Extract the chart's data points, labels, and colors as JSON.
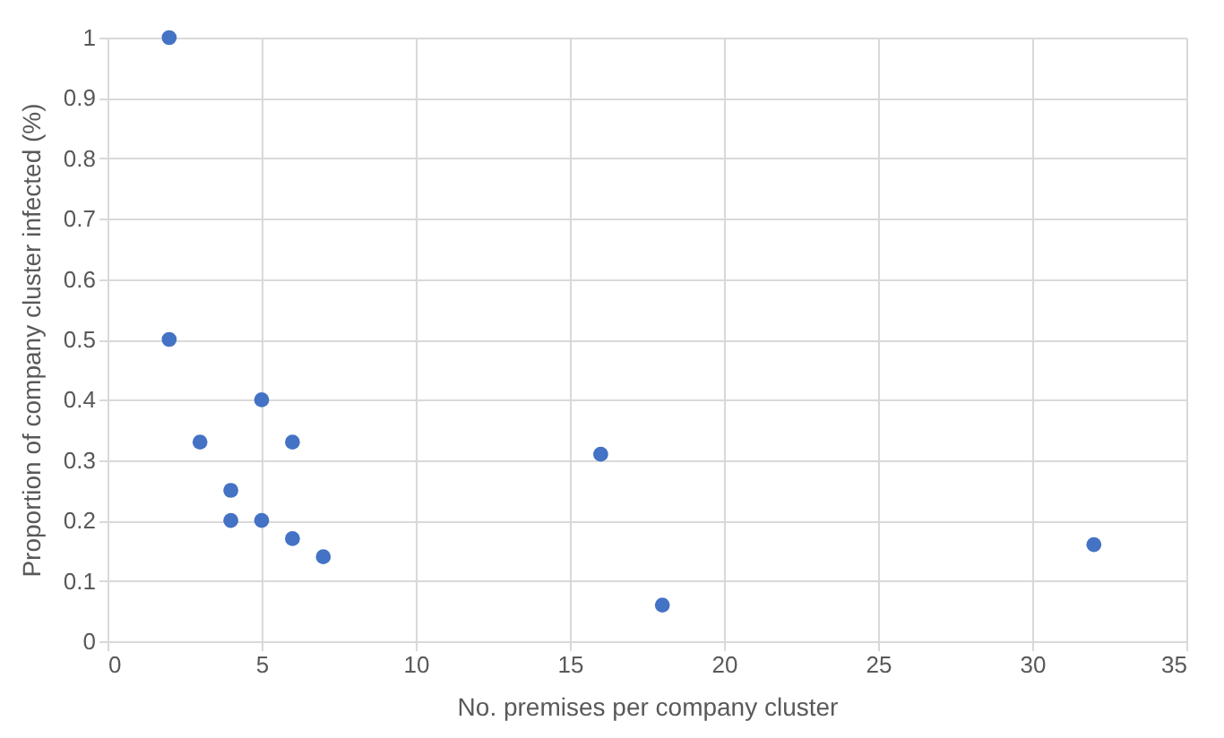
{
  "chart_data": {
    "type": "scatter",
    "xlabel": "No. premises per company cluster",
    "ylabel": "Proportion of company cluster infected (%)",
    "x": [
      2,
      2,
      3,
      4,
      4,
      5,
      5,
      6,
      6,
      7,
      16,
      18,
      32
    ],
    "series": [
      {
        "color": "#4472c4",
        "values": [
          1,
          0.5,
          0.33,
          0.25,
          0.2,
          0.4,
          0.2,
          0.33,
          0.17,
          0.14,
          0.31,
          0.06,
          0.16
        ]
      }
    ],
    "xlim": [
      0,
      35
    ],
    "xticks": [
      0,
      5,
      10,
      15,
      20,
      25,
      30,
      35
    ],
    "ylim": [
      0,
      1
    ],
    "yticks": [
      0,
      0.1,
      0.2,
      0.3,
      0.4,
      0.5,
      0.6,
      0.7,
      0.8,
      0.9,
      1
    ],
    "grid": true,
    "marker": "circle"
  }
}
